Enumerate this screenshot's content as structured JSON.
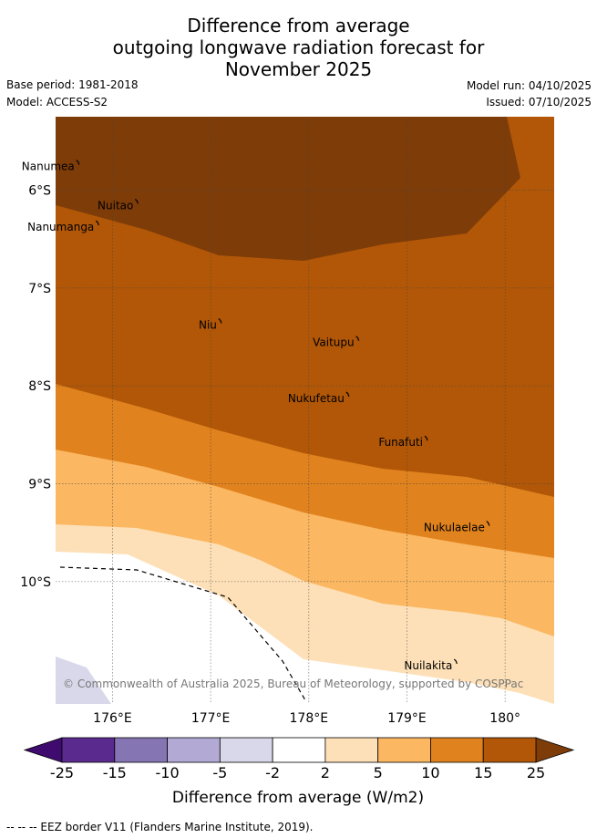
{
  "title": {
    "line1": "Difference from average",
    "line2": "outgoing longwave radiation forecast for",
    "line3": "November 2025"
  },
  "meta": {
    "base_period": "Base period: 1981-2018",
    "model": "Model: ACCESS-S2",
    "model_run": "Model run: 04/10/2025",
    "issued": "Issued: 07/10/2025"
  },
  "chart_data": {
    "type": "heatmap",
    "title": "Difference from average outgoing longwave radiation forecast for November 2025",
    "x_ticks": [
      "176°E",
      "177°E",
      "178°E",
      "179°E",
      "180°"
    ],
    "x_tick_values": [
      176,
      177,
      178,
      179,
      180
    ],
    "y_ticks": [
      "6°S",
      "7°S",
      "8°S",
      "9°S",
      "10°S"
    ],
    "y_tick_values": [
      -6,
      -7,
      -8,
      -9,
      -10
    ],
    "xlim": [
      175.42,
      180.5
    ],
    "ylim": [
      -11.25,
      -5.25
    ],
    "islands": [
      {
        "name": "Nanumea",
        "lon": 175.65,
        "lat": -5.73
      },
      {
        "name": "Nuitao",
        "lon": 176.25,
        "lat": -6.13
      },
      {
        "name": "Nanumanga",
        "lon": 175.85,
        "lat": -6.35
      },
      {
        "name": "Niu",
        "lon": 177.1,
        "lat": -7.35
      },
      {
        "name": "Vaitupu",
        "lon": 178.5,
        "lat": -7.53
      },
      {
        "name": "Nukufetau",
        "lon": 178.4,
        "lat": -8.1
      },
      {
        "name": "Funafuti",
        "lon": 179.2,
        "lat": -8.55
      },
      {
        "name": "Nukulaelae",
        "lon": 179.83,
        "lat": -9.42
      },
      {
        "name": "Nuilakita",
        "lon": 179.5,
        "lat": -10.83
      }
    ],
    "colorbar": {
      "label": "Difference from average (W/m2)",
      "ticks": [
        "-25",
        "-15",
        "-10",
        "-5",
        "-2",
        "2",
        "5",
        "10",
        "15",
        "25"
      ],
      "bins": [
        {
          "lo": -25,
          "hi": -15,
          "color": "#5a2a8f"
        },
        {
          "lo": -15,
          "hi": -10,
          "color": "#8675b3"
        },
        {
          "lo": -10,
          "hi": -5,
          "color": "#b2aad4"
        },
        {
          "lo": -5,
          "hi": -2,
          "color": "#d8d8ea"
        },
        {
          "lo": -2,
          "hi": 2,
          "color": "#ffffff"
        },
        {
          "lo": 2,
          "hi": 5,
          "color": "#fde0b7"
        },
        {
          "lo": 5,
          "hi": 10,
          "color": "#fbb761"
        },
        {
          "lo": 10,
          "hi": 15,
          "color": "#e0821d"
        },
        {
          "lo": 15,
          "hi": 25,
          "color": "#b15707"
        }
      ],
      "under_color": "#3f0b6e",
      "over_color": "#7e3c09"
    },
    "field_bands": [
      {
        "range": "15 to 25",
        "color": "#b15707"
      },
      {
        "range": "> 25",
        "color": "#7e3c09"
      },
      {
        "range": "10 to 15",
        "color": "#e0821d"
      },
      {
        "range": "5 to 10",
        "color": "#fbb761"
      },
      {
        "range": "2 to 5",
        "color": "#fde0b7"
      },
      {
        "range": "-2 to 2",
        "color": "#ffffff"
      },
      {
        "range": "-5 to -2",
        "color": "#d8d8ea"
      }
    ]
  },
  "copyright": "© Commonwealth of Australia 2025, Bureau of Meteorology, supported by COSPPac",
  "footnote": "--  --  -- EEZ border V11 (Flanders Marine Institute, 2019)."
}
